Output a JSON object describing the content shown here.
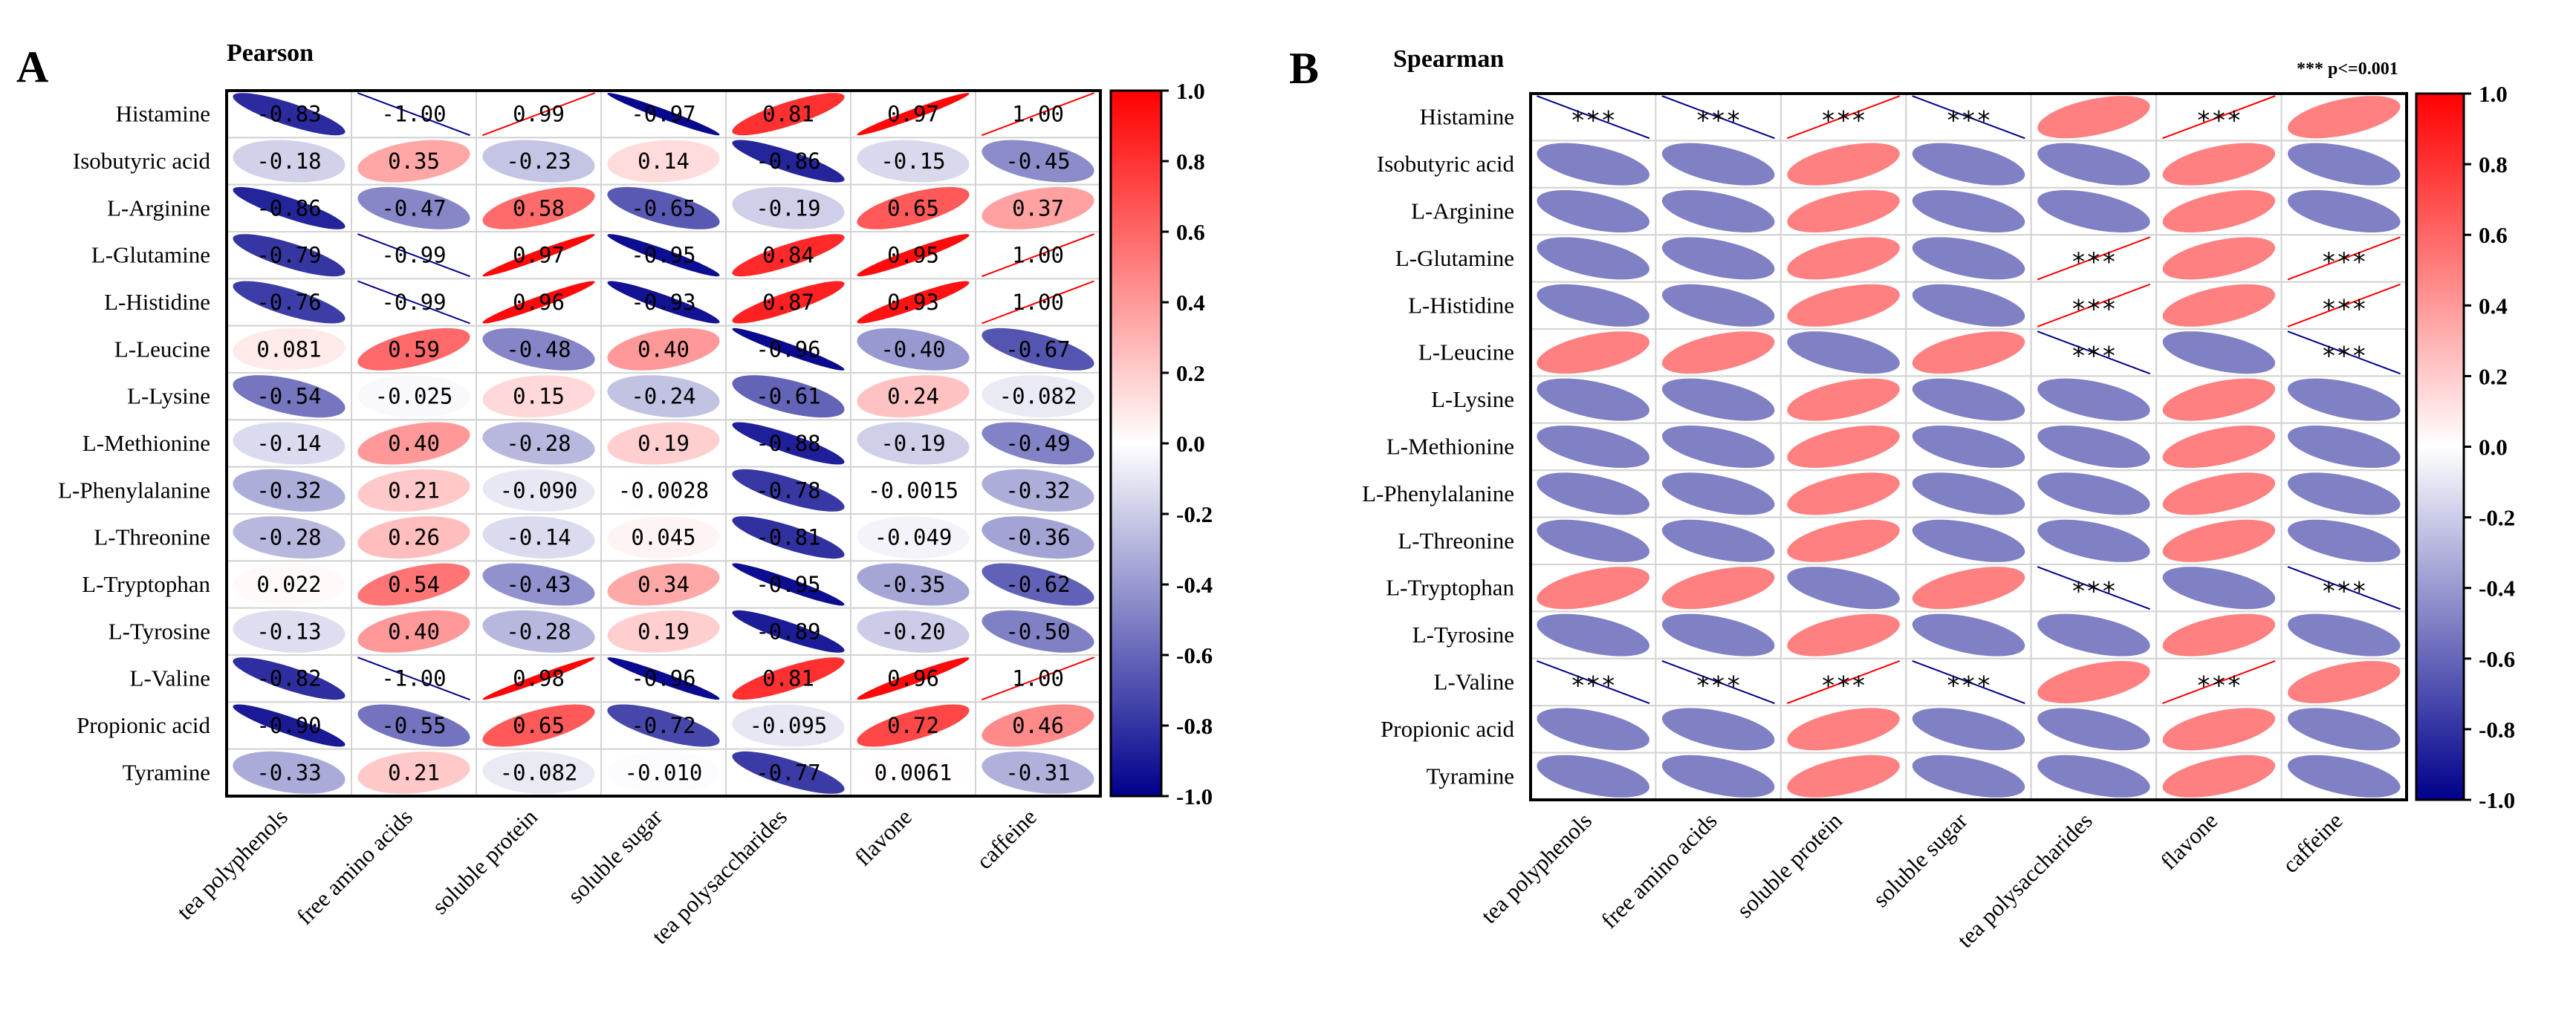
{
  "colors": {
    "positive": "#FF0000",
    "neutral": "#FFFFFF",
    "negative": "#00008B",
    "grid": "#D3D3D3",
    "frame": "#000000"
  },
  "colorbar_ticks": [
    "1.0",
    "0.8",
    "0.6",
    "0.4",
    "0.2",
    "0.0",
    "-0.2",
    "-0.4",
    "-0.6",
    "-0.8",
    "-1.0"
  ],
  "chart_data": [
    {
      "panel": "A",
      "type": "heatmap",
      "title": "Pearson",
      "rows": [
        "Histamine",
        "Isobutyric acid",
        "L-Arginine",
        "L-Glutamine",
        "L-Histidine",
        "L-Leucine",
        "L-Lysine",
        "L-Methionine",
        "L-Phenylalanine",
        "L-Threonine",
        "L-Tryptophan",
        "L-Tyrosine",
        "L-Valine",
        "Propionic acid",
        "Tyramine"
      ],
      "columns": [
        "tea polyphenols",
        "free amino acids",
        "soluble protein",
        "soluble sugar",
        "tea polysaccharides",
        "flavone",
        "caffeine"
      ],
      "values": [
        [
          -0.83,
          -1.0,
          0.99,
          -0.97,
          0.81,
          0.97,
          1.0
        ],
        [
          -0.18,
          0.35,
          -0.23,
          0.14,
          -0.86,
          -0.15,
          -0.45
        ],
        [
          -0.86,
          -0.47,
          0.58,
          -0.65,
          -0.19,
          0.65,
          0.37
        ],
        [
          -0.79,
          -0.99,
          0.97,
          -0.95,
          0.84,
          0.95,
          1.0
        ],
        [
          -0.76,
          -0.99,
          0.96,
          -0.93,
          0.87,
          0.93,
          1.0
        ],
        [
          0.081,
          0.59,
          -0.48,
          0.4,
          -0.96,
          -0.4,
          -0.67
        ],
        [
          -0.54,
          -0.025,
          0.15,
          -0.24,
          -0.61,
          0.24,
          -0.082
        ],
        [
          -0.14,
          0.4,
          -0.28,
          0.19,
          -0.88,
          -0.19,
          -0.49
        ],
        [
          -0.32,
          0.21,
          -0.09,
          -0.0028,
          -0.78,
          -0.0015,
          -0.32
        ],
        [
          -0.28,
          0.26,
          -0.14,
          0.045,
          -0.81,
          -0.049,
          -0.36
        ],
        [
          0.022,
          0.54,
          -0.43,
          0.34,
          -0.95,
          -0.35,
          -0.62
        ],
        [
          -0.13,
          0.4,
          -0.28,
          0.19,
          -0.89,
          -0.2,
          -0.5
        ],
        [
          -0.82,
          -1.0,
          0.98,
          -0.96,
          0.81,
          0.96,
          1.0
        ],
        [
          -0.9,
          -0.55,
          0.65,
          -0.72,
          -0.095,
          0.72,
          0.46
        ],
        [
          -0.33,
          0.21,
          -0.082,
          -0.01,
          -0.77,
          0.0061,
          -0.31
        ]
      ],
      "show_values": true,
      "range": [
        -1,
        1
      ]
    },
    {
      "panel": "B",
      "type": "heatmap",
      "title": "Spearman",
      "legend_note": "*** p<=0.001",
      "significance_mark": "***",
      "rows": [
        "Histamine",
        "Isobutyric acid",
        "L-Arginine",
        "L-Glutamine",
        "L-Histidine",
        "L-Leucine",
        "L-Lysine",
        "L-Methionine",
        "L-Phenylalanine",
        "L-Threonine",
        "L-Tryptophan",
        "L-Tyrosine",
        "L-Valine",
        "Propionic acid",
        "Tyramine"
      ],
      "columns": [
        "tea polyphenols",
        "free amino acids",
        "soluble protein",
        "soluble sugar",
        "tea polysaccharides",
        "flavone",
        "caffeine"
      ],
      "values": [
        [
          -1.0,
          -1.0,
          1.0,
          -1.0,
          0.5,
          1.0,
          0.5
        ],
        [
          -0.5,
          -0.5,
          0.5,
          -0.5,
          -0.5,
          0.5,
          -0.5
        ],
        [
          -0.5,
          -0.5,
          0.5,
          -0.5,
          -0.5,
          0.5,
          -0.5
        ],
        [
          -0.5,
          -0.5,
          0.5,
          -0.5,
          1.0,
          0.5,
          1.0
        ],
        [
          -0.5,
          -0.5,
          0.5,
          -0.5,
          1.0,
          0.5,
          1.0
        ],
        [
          0.5,
          0.5,
          -0.5,
          0.5,
          -1.0,
          -0.5,
          -1.0
        ],
        [
          -0.5,
          -0.5,
          0.5,
          -0.5,
          -0.5,
          0.5,
          -0.5
        ],
        [
          -0.5,
          -0.5,
          0.5,
          -0.5,
          -0.5,
          0.5,
          -0.5
        ],
        [
          -0.5,
          -0.5,
          0.5,
          -0.5,
          -0.5,
          0.5,
          -0.5
        ],
        [
          -0.5,
          -0.5,
          0.5,
          -0.5,
          -0.5,
          0.5,
          -0.5
        ],
        [
          0.5,
          0.5,
          -0.5,
          0.5,
          -1.0,
          -0.5,
          -1.0
        ],
        [
          -0.5,
          -0.5,
          0.5,
          -0.5,
          -0.5,
          0.5,
          -0.5
        ],
        [
          -1.0,
          -1.0,
          1.0,
          -1.0,
          0.5,
          1.0,
          0.5
        ],
        [
          -0.5,
          -0.5,
          0.5,
          -0.5,
          -0.5,
          0.5,
          -0.5
        ],
        [
          -0.5,
          -0.5,
          0.5,
          -0.5,
          -0.5,
          0.5,
          -0.5
        ]
      ],
      "significant": [
        [
          1,
          1,
          1,
          1,
          0,
          1,
          0
        ],
        [
          0,
          0,
          0,
          0,
          0,
          0,
          0
        ],
        [
          0,
          0,
          0,
          0,
          0,
          0,
          0
        ],
        [
          0,
          0,
          0,
          0,
          1,
          0,
          1
        ],
        [
          0,
          0,
          0,
          0,
          1,
          0,
          1
        ],
        [
          0,
          0,
          0,
          0,
          1,
          0,
          1
        ],
        [
          0,
          0,
          0,
          0,
          0,
          0,
          0
        ],
        [
          0,
          0,
          0,
          0,
          0,
          0,
          0
        ],
        [
          0,
          0,
          0,
          0,
          0,
          0,
          0
        ],
        [
          0,
          0,
          0,
          0,
          0,
          0,
          0
        ],
        [
          0,
          0,
          0,
          0,
          1,
          0,
          1
        ],
        [
          0,
          0,
          0,
          0,
          0,
          0,
          0
        ],
        [
          1,
          1,
          1,
          1,
          0,
          1,
          0
        ],
        [
          0,
          0,
          0,
          0,
          0,
          0,
          0
        ],
        [
          0,
          0,
          0,
          0,
          0,
          0,
          0
        ]
      ],
      "show_values": false,
      "range": [
        -1,
        1
      ]
    }
  ]
}
